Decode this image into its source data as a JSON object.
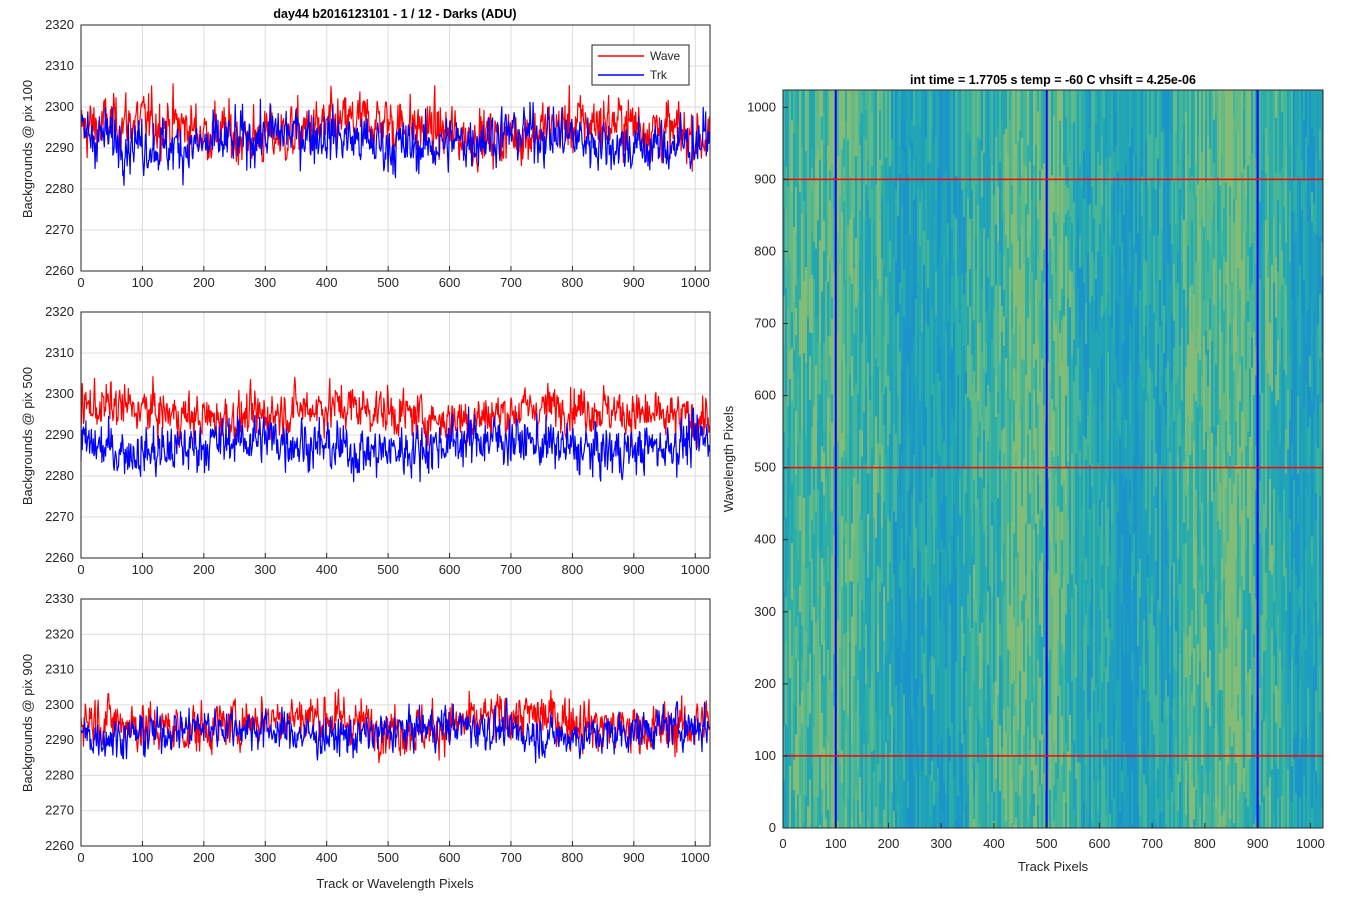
{
  "figure_title": "day44 b2016123101 - 1 / 12 - Darks (ADU)",
  "colors": {
    "wave": "#ff0000",
    "trk": "#0000ff",
    "grid": "#dcdcdc",
    "axis": "#262626"
  },
  "chart_data": [
    {
      "type": "line",
      "panel": "top",
      "title": "day44 b2016123101 - 1 / 12 - Darks (ADU)",
      "xlabel": "",
      "ylabel": "Backgrounds @ pix 100",
      "xlim": [
        0,
        1024
      ],
      "ylim": [
        2260,
        2320
      ],
      "xticks": [
        0,
        100,
        200,
        300,
        400,
        500,
        600,
        700,
        800,
        900,
        1000
      ],
      "yticks": [
        2260,
        2270,
        2280,
        2290,
        2300,
        2310,
        2320
      ],
      "grid": true,
      "legend_position": "top-right",
      "series": [
        {
          "name": "Wave",
          "color": "#ff0000",
          "mean": 2294.5,
          "noise": 7.5,
          "points": 1024
        },
        {
          "name": "Trk",
          "color": "#0000ff",
          "mean": 2292.0,
          "noise": 7.0,
          "points": 1024
        }
      ]
    },
    {
      "type": "line",
      "panel": "middle",
      "title": "",
      "xlabel": "",
      "ylabel": "Backgrounds @ pix 500",
      "xlim": [
        0,
        1024
      ],
      "ylim": [
        2260,
        2320
      ],
      "xticks": [
        0,
        100,
        200,
        300,
        400,
        500,
        600,
        700,
        800,
        900,
        1000
      ],
      "yticks": [
        2260,
        2270,
        2280,
        2290,
        2300,
        2310,
        2320
      ],
      "grid": true,
      "series": [
        {
          "name": "Wave",
          "color": "#ff0000",
          "mean": 2295.5,
          "noise": 6.0,
          "points": 1024
        },
        {
          "name": "Trk",
          "color": "#0000ff",
          "mean": 2287.5,
          "noise": 6.5,
          "points": 1024
        }
      ]
    },
    {
      "type": "line",
      "panel": "bottom",
      "title": "",
      "xlabel": "Track or Wavelength Pixels",
      "ylabel": "Backgrounds @ pix 900",
      "xlim": [
        0,
        1024
      ],
      "ylim": [
        2260,
        2330
      ],
      "xticks": [
        0,
        100,
        200,
        300,
        400,
        500,
        600,
        700,
        800,
        900,
        1000
      ],
      "yticks": [
        2260,
        2270,
        2280,
        2290,
        2300,
        2310,
        2320,
        2330
      ],
      "grid": true,
      "series": [
        {
          "name": "Wave",
          "color": "#ff0000",
          "mean": 2295.0,
          "noise": 7.5,
          "points": 1024
        },
        {
          "name": "Trk",
          "color": "#0000ff",
          "mean": 2292.5,
          "noise": 6.0,
          "points": 1024
        }
      ]
    },
    {
      "type": "heatmap",
      "panel": "image",
      "title": "int time = 1.7705 s   temp = -60 C   vhsift = 4.25e-06",
      "xlabel": "Track Pixels",
      "ylabel": "Wavelength Pixels",
      "xlim": [
        0,
        1024
      ],
      "ylim": [
        0,
        1024
      ],
      "xticks": [
        0,
        100,
        200,
        300,
        400,
        500,
        600,
        700,
        800,
        900,
        1000
      ],
      "yticks": [
        0,
        100,
        200,
        300,
        400,
        500,
        600,
        700,
        800,
        900,
        1000
      ],
      "colormap": "parula",
      "vertical_markers": [
        100,
        500,
        900
      ],
      "vertical_marker_color": "#0000ff",
      "horizontal_markers": [
        100,
        500,
        900
      ],
      "horizontal_marker_color": "#ff0000"
    }
  ]
}
